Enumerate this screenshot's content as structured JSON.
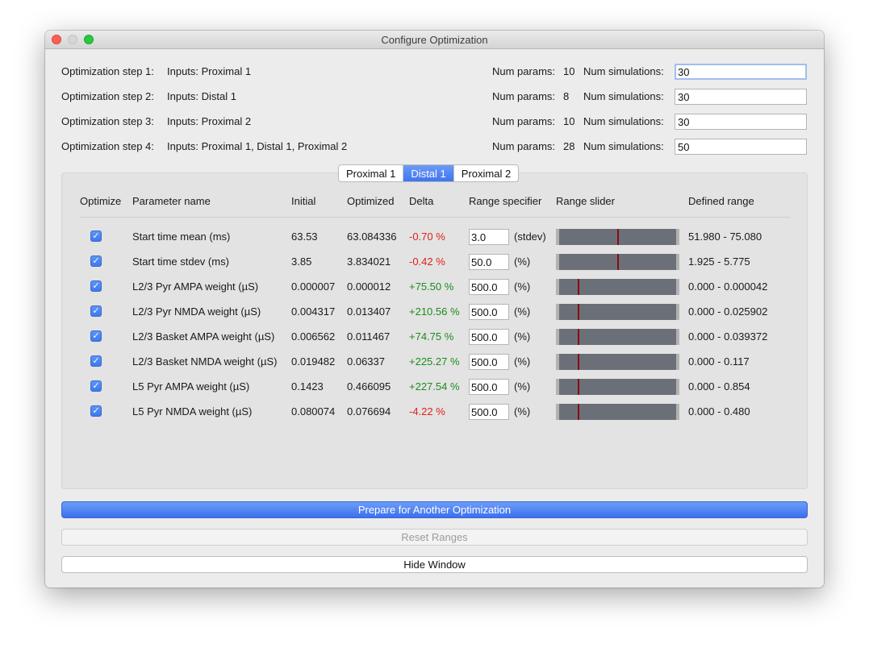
{
  "window": {
    "title": "Configure Optimization"
  },
  "steps": [
    {
      "label": "Optimization step 1:",
      "inputs": "Inputs: Proximal 1",
      "num_params_label": "Num params:",
      "num_params": "10",
      "num_sims_label": "Num simulations:",
      "num_sims": "30"
    },
    {
      "label": "Optimization step 2:",
      "inputs": "Inputs: Distal 1",
      "num_params_label": "Num params:",
      "num_params": "8",
      "num_sims_label": "Num simulations:",
      "num_sims": "30"
    },
    {
      "label": "Optimization step 3:",
      "inputs": "Inputs: Proximal 2",
      "num_params_label": "Num params:",
      "num_params": "10",
      "num_sims_label": "Num simulations:",
      "num_sims": "30"
    },
    {
      "label": "Optimization step 4:",
      "inputs": "Inputs: Proximal 1, Distal 1, Proximal 2",
      "num_params_label": "Num params:",
      "num_params": "28",
      "num_sims_label": "Num simulations:",
      "num_sims": "50"
    }
  ],
  "tabs": [
    "Proximal 1",
    "Distal 1",
    "Proximal 2"
  ],
  "active_tab": "Distal 1",
  "headers": {
    "optimize": "Optimize",
    "name": "Parameter name",
    "initial": "Initial",
    "optimized": "Optimized",
    "delta": "Delta",
    "range_spec": "Range specifier",
    "range_slider": "Range slider",
    "defined_range": "Defined range"
  },
  "colors": {
    "accent": "#3f74ef",
    "negative": "#e0201b",
    "positive": "#1c8c1c",
    "slider_track": "#6b6f78",
    "slider_marker": "#8b0c12"
  },
  "params": [
    {
      "checked": true,
      "name": "Start time mean (ms)",
      "initial": "63.53",
      "optimized": "63.084336",
      "delta": "-0.70 %",
      "sign": "neg",
      "spec": "3.0",
      "unit": "(stdev)",
      "range": "51.980 - 75.080",
      "level": 0.5
    },
    {
      "checked": true,
      "name": "Start time stdev (ms)",
      "initial": "3.85",
      "optimized": "3.834021",
      "delta": "-0.42 %",
      "sign": "neg",
      "spec": "50.0",
      "unit": "(%)",
      "range": "1.925 - 5.775",
      "level": 0.5
    },
    {
      "checked": true,
      "name": "L2/3 Pyr AMPA weight (µS)",
      "initial": "0.000007",
      "optimized": "0.000012",
      "delta": "+75.50 %",
      "sign": "pos",
      "spec": "500.0",
      "unit": "(%)",
      "range": "0.000 - 0.000042",
      "level": 0.167
    },
    {
      "checked": true,
      "name": "L2/3 Pyr NMDA weight (µS)",
      "initial": "0.004317",
      "optimized": "0.013407",
      "delta": "+210.56 %",
      "sign": "pos",
      "spec": "500.0",
      "unit": "(%)",
      "range": "0.000 - 0.025902",
      "level": 0.167
    },
    {
      "checked": true,
      "name": "L2/3 Basket AMPA weight (µS)",
      "initial": "0.006562",
      "optimized": "0.011467",
      "delta": "+74.75 %",
      "sign": "pos",
      "spec": "500.0",
      "unit": "(%)",
      "range": "0.000 - 0.039372",
      "level": 0.167
    },
    {
      "checked": true,
      "name": "L2/3 Basket NMDA weight (µS)",
      "initial": "0.019482",
      "optimized": "0.06337",
      "delta": "+225.27 %",
      "sign": "pos",
      "spec": "500.0",
      "unit": "(%)",
      "range": "0.000 - 0.117",
      "level": 0.167
    },
    {
      "checked": true,
      "name": "L5 Pyr AMPA weight (µS)",
      "initial": "0.1423",
      "optimized": "0.466095",
      "delta": "+227.54 %",
      "sign": "pos",
      "spec": "500.0",
      "unit": "(%)",
      "range": "0.000 - 0.854",
      "level": 0.167
    },
    {
      "checked": true,
      "name": "L5 Pyr NMDA weight (µS)",
      "initial": "0.080074",
      "optimized": "0.076694",
      "delta": "-4.22 %",
      "sign": "neg",
      "spec": "500.0",
      "unit": "(%)",
      "range": "0.000 - 0.480",
      "level": 0.167
    }
  ],
  "buttons": {
    "prepare": "Prepare for Another Optimization",
    "reset": "Reset Ranges",
    "hide": "Hide Window"
  }
}
